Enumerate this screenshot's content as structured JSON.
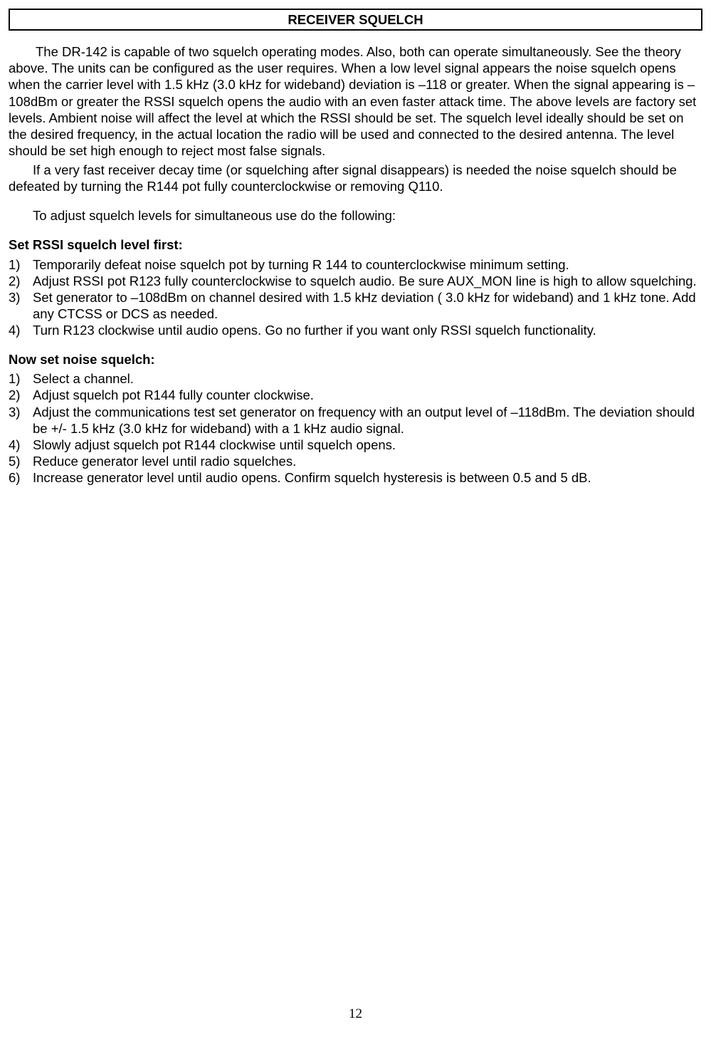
{
  "title": "RECEIVER SQUELCH",
  "para1": "The DR-142 is capable of two squelch operating modes. Also, both can operate simultaneously. See the theory above. The units can be configured as the user requires. When a low level signal appears the noise squelch opens when the carrier level with 1.5 kHz (3.0 kHz for wideband) deviation is –118 or greater. When the signal appearing is –108dBm or greater the RSSI squelch opens the audio with an even faster attack time. The above levels are factory set levels. Ambient noise will affect the level at which the RSSI should be set. The squelch level ideally should be set on the desired frequency, in the actual location the radio will be used and connected to the desired antenna. The level should be set high enough to reject most false signals.",
  "para2": "If a very fast receiver decay time (or squelching after signal disappears) is needed the noise squelch should be defeated by turning the R144 pot fully counterclockwise or removing Q110.",
  "para3": "To adjust squelch levels for simultaneous use do the following:",
  "rssi_heading": "Set RSSI squelch level first:",
  "rssi_items": [
    "Temporarily defeat noise squelch pot by turning R 144 to counterclockwise minimum setting.",
    "Adjust RSSI pot R123 fully counterclockwise to squelch audio. Be sure AUX_MON line is high to allow squelching.",
    "Set generator to –108dBm on channel desired with 1.5 kHz deviation ( 3.0 kHz for wideband) and 1 kHz tone. Add any CTCSS or DCS as needed.",
    "Turn R123 clockwise until audio opens. Go no further if you want only RSSI squelch functionality."
  ],
  "noise_heading": "Now set noise squelch:",
  "noise_items": [
    "Select a channel.",
    "Adjust squelch pot R144 fully counter clockwise.",
    "Adjust the communications test set generator on frequency with an output level of –118dBm. The deviation should be +/- 1.5 kHz (3.0 kHz for wideband) with a 1 kHz audio signal.",
    "Slowly adjust squelch pot R144 clockwise until squelch opens.",
    "Reduce generator level until radio squelches.",
    "Increase generator level until audio opens.  Confirm squelch hysteresis is between 0.5 and 5 dB."
  ],
  "page_number": "12"
}
